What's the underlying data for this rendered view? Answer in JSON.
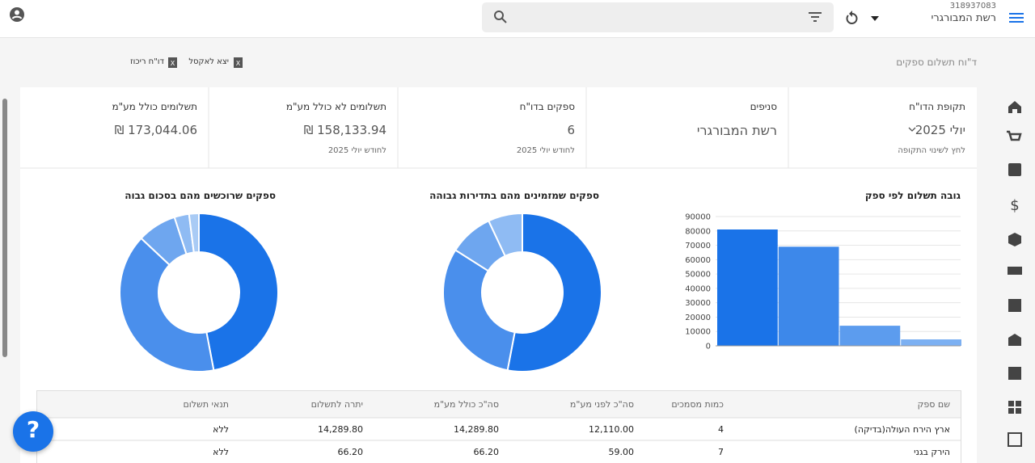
{
  "header": {
    "account_id": "318937083",
    "store": "רשת המבורגרי"
  },
  "page": {
    "title": "ד\"וח תשלום ספקים",
    "actions": [
      "יצא לאקסל",
      "דו\"ח ריכוז"
    ]
  },
  "cards": [
    {
      "title": "תקופת הדו\"ח",
      "value": "יולי 2025",
      "sub": "לחץ לשינוי התקופה"
    },
    {
      "title": "סניפים",
      "value": "רשת המבורגרי"
    },
    {
      "title": "ספקים בדו\"ח",
      "value": "6",
      "sub": "לחודש  יולי 2025"
    },
    {
      "title": "תשלומים לא כולל מע\"מ",
      "value": "158,133.94 ₪",
      "sub": "לחודש  יולי 2025"
    },
    {
      "title": "תשלומים כולל מע\"מ",
      "value": "173,044.06 ₪"
    }
  ],
  "chart_data": [
    {
      "type": "bar",
      "title": "גובה תשלום לפי ספק",
      "categories": [
        null,
        null,
        null,
        null
      ],
      "values": [
        81000,
        69000,
        14000,
        4500
      ],
      "colors": [
        "#1a73e8",
        "#3d88ea",
        "#5c9cee",
        "#7cb0f2"
      ],
      "ylim": [
        0,
        90000
      ],
      "yticks": [
        0,
        10000,
        20000,
        30000,
        40000,
        50000,
        60000,
        70000,
        80000,
        90000
      ],
      "grid": true
    },
    {
      "type": "pie",
      "donut": true,
      "title": "ספקים שמזמינים מהם בתדירות גבוהה",
      "values": [
        53,
        31,
        9,
        7
      ],
      "colors": [
        "#1a73e8",
        "#4a8fec",
        "#6ea6ef",
        "#8fbbf3"
      ]
    },
    {
      "type": "pie",
      "donut": true,
      "title": "ספקים שרוכשים מהם בסכום גבוה",
      "values": [
        47,
        40,
        8,
        3,
        2
      ],
      "colors": [
        "#1a73e8",
        "#4a8fec",
        "#6ea6ef",
        "#8fbbf3",
        "#a9cbf5"
      ]
    }
  ],
  "table": {
    "headers": [
      "שם ספק",
      "כמות מסמכים",
      "סה\"כ לפני מע\"מ",
      "סה\"כ כולל מע\"מ",
      "יתרה לתשלום",
      "תנאי תשלום"
    ],
    "rows": [
      [
        "ארץ הירח העולה(בדיקה)",
        "4",
        "12,110.00",
        "14,289.80",
        "14,289.80",
        "ללא"
      ],
      [
        "הירק בגני",
        "7",
        "59.00",
        "66.20",
        "66.20",
        "ללא"
      ]
    ]
  },
  "help": "?"
}
